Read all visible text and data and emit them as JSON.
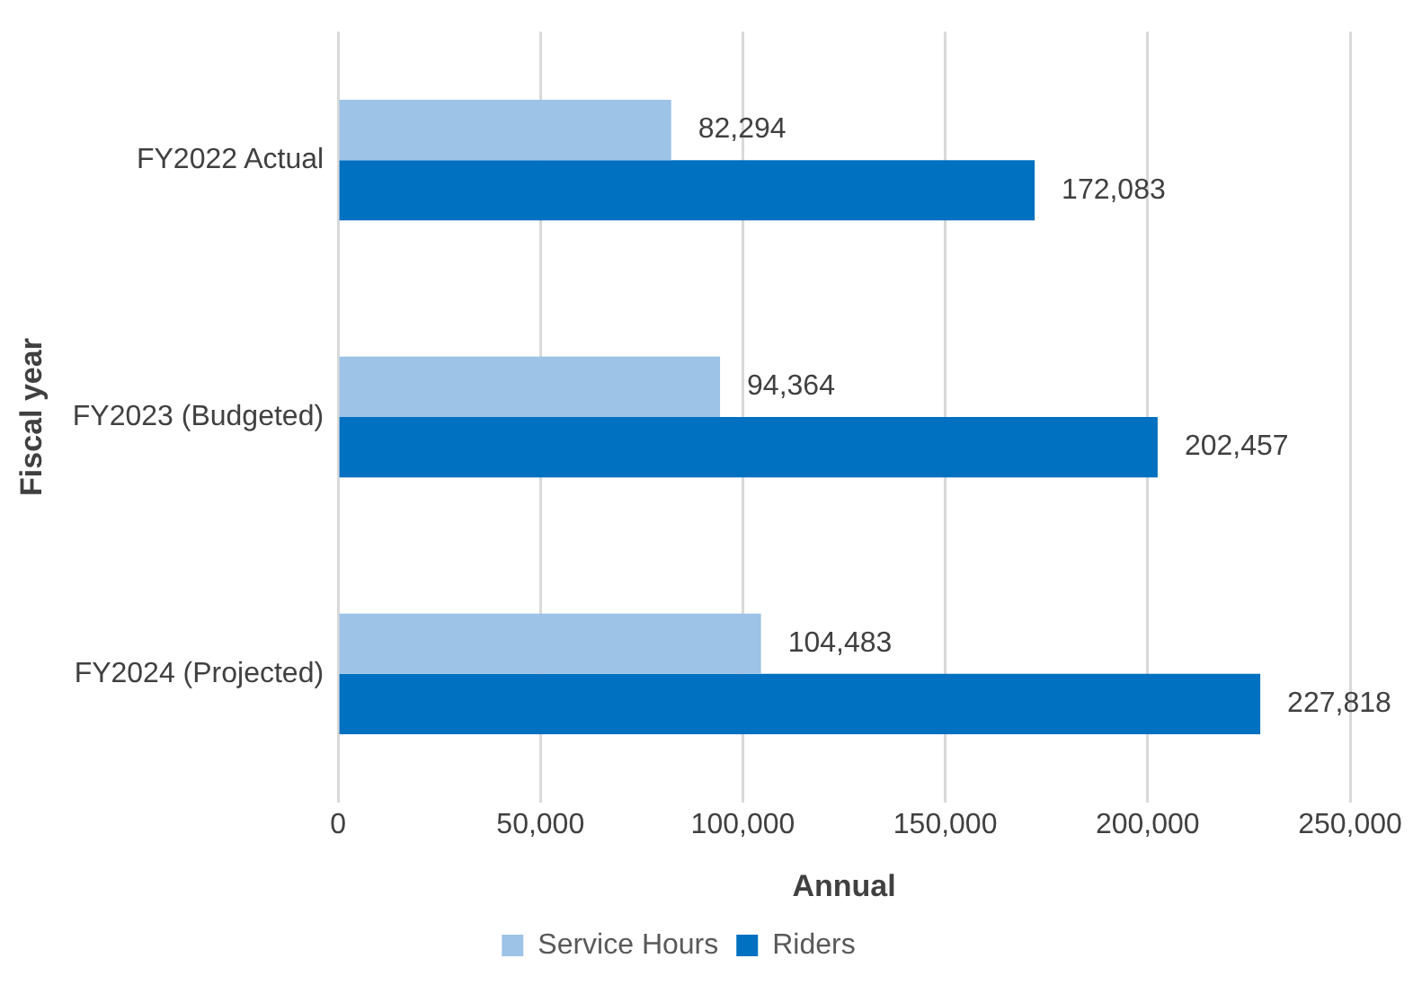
{
  "chart_data": {
    "type": "bar",
    "orientation": "horizontal",
    "xlabel": "Annual",
    "ylabel": "Fiscal year",
    "categories": [
      "FY2022 Actual",
      "FY2023 (Budgeted)",
      "FY2024 (Projected)"
    ],
    "series": [
      {
        "name": "Service Hours",
        "color": "#9dc3e6",
        "values": [
          82294,
          94364,
          104483
        ],
        "value_labels": [
          "82,294",
          "94,364",
          "104,483"
        ]
      },
      {
        "name": "Riders",
        "color": "#0070c0",
        "values": [
          172083,
          202457,
          227818
        ],
        "value_labels": [
          "172,083",
          "202,457",
          "227,818"
        ]
      }
    ],
    "xlim": [
      0,
      250000
    ],
    "xticks": [
      {
        "value": 0,
        "label": "0"
      },
      {
        "value": 50000,
        "label": "50,000"
      },
      {
        "value": 100000,
        "label": "100,000"
      },
      {
        "value": 150000,
        "label": "150,000"
      },
      {
        "value": 200000,
        "label": "200,000"
      },
      {
        "value": 250000,
        "label": "250,000"
      }
    ],
    "grid": "x",
    "legend": "bottom"
  }
}
